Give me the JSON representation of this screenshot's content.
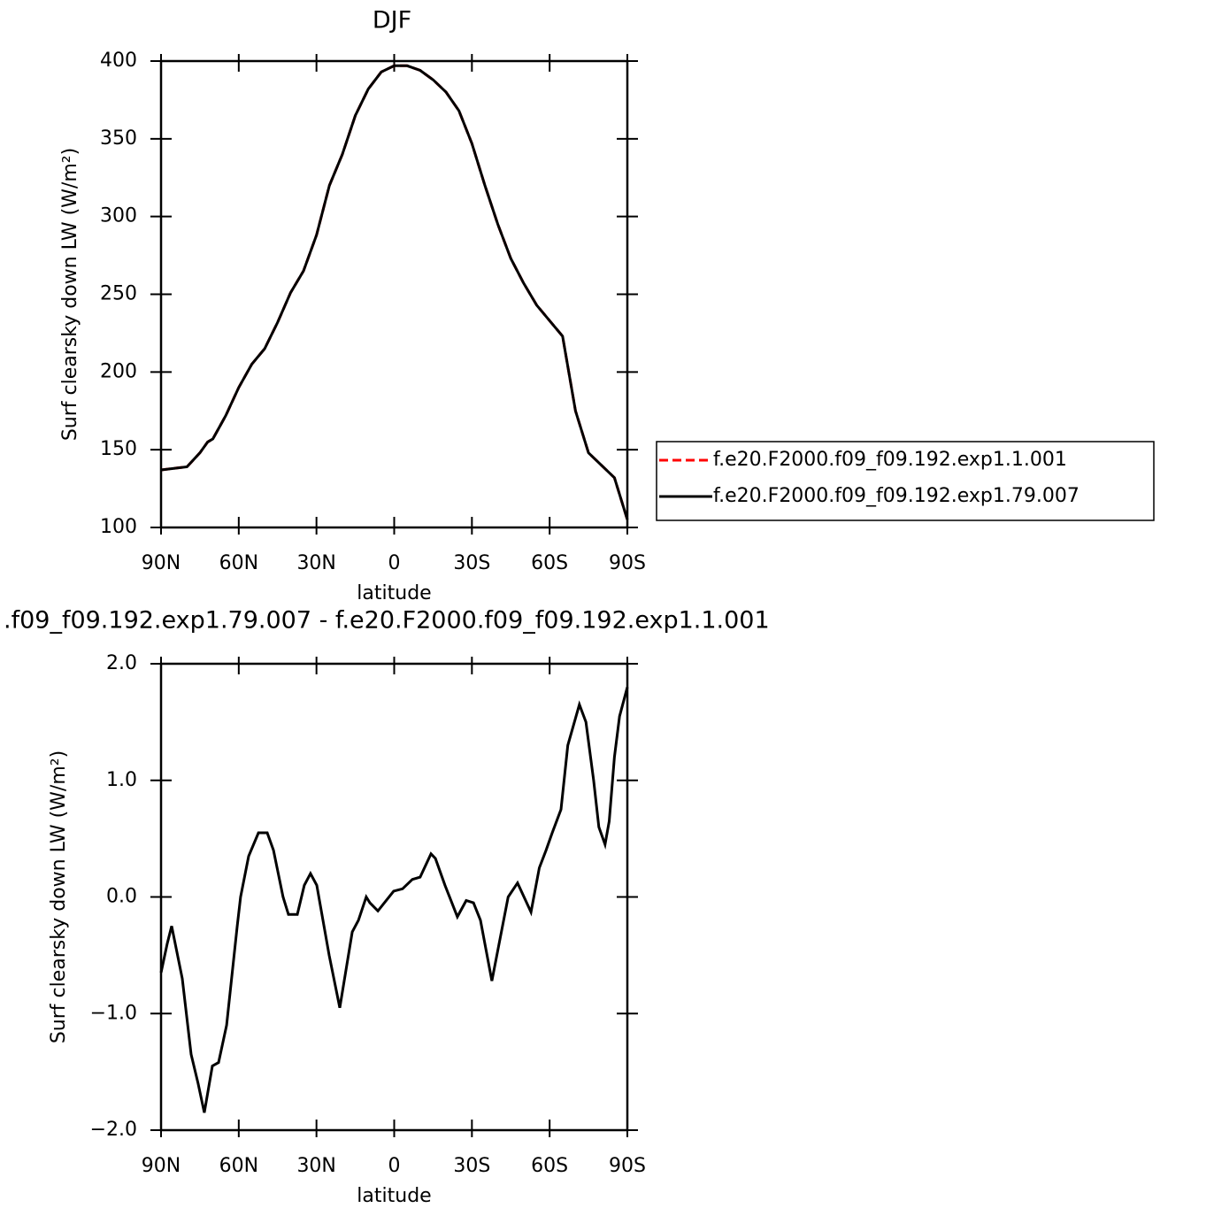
{
  "chart_data": [
    {
      "type": "line",
      "title": "DJF",
      "xlabel": "latitude",
      "ylabel": "Surf  clearsky  down  LW  (W/m²)",
      "x": [
        90,
        85,
        80,
        75,
        72,
        70,
        65,
        60,
        55,
        50,
        45,
        40,
        35,
        30,
        25,
        20,
        15,
        10,
        5,
        0,
        -5,
        -10,
        -15,
        -20,
        -25,
        -30,
        -35,
        -40,
        -45,
        -50,
        -55,
        -60,
        -65,
        -70,
        -75,
        -80,
        -85,
        -90
      ],
      "series": [
        {
          "name": "f.e20.F2000.f09_f09.192.exp1.1.001",
          "color": "#ff0000",
          "style": "dashed",
          "values": [
            137,
            138,
            139,
            148,
            155,
            157,
            172,
            190,
            205,
            215,
            232,
            251,
            265,
            288,
            320,
            340,
            365,
            382,
            393,
            397,
            397,
            394,
            388,
            380,
            368,
            347,
            320,
            295,
            273,
            257,
            243,
            233,
            223,
            175,
            148,
            140,
            132,
            105
          ]
        },
        {
          "name": "f.e20.F2000.f09_f09.192.exp1.79.007",
          "color": "#000000",
          "style": "solid",
          "values": [
            137,
            138,
            139,
            148,
            155,
            157,
            172,
            190,
            205,
            215,
            232,
            251,
            265,
            288,
            320,
            340,
            365,
            382,
            393,
            397,
            397,
            394,
            388,
            380,
            368,
            347,
            320,
            295,
            273,
            257,
            243,
            233,
            223,
            175,
            148,
            140,
            132,
            105
          ]
        }
      ],
      "xlim": [
        90,
        -90
      ],
      "xticks": [
        {
          "value": 90,
          "label": "90N"
        },
        {
          "value": 60,
          "label": "60N"
        },
        {
          "value": 30,
          "label": "30N"
        },
        0,
        {
          "value": -30,
          "label": "30S"
        },
        {
          "value": -60,
          "label": "60S"
        },
        {
          "value": -90,
          "label": "90S"
        }
      ],
      "ylim": [
        100,
        400
      ],
      "yticks": [
        100,
        150,
        200,
        250,
        300,
        350,
        400
      ],
      "legend": "right"
    },
    {
      "type": "line",
      "title": ".f09_f09.192.exp1.79.007 - f.e20.F2000.f09_f09.192.exp1.1.001",
      "xlabel": "latitude",
      "ylabel": "Surf  clearsky  down  LW  (W/m²)",
      "x": [
        90,
        87.6,
        85.9,
        81.8,
        78.4,
        75.7,
        73.3,
        70.2,
        67.8,
        64.7,
        60.6,
        59.3,
        56.2,
        52.4,
        49,
        46.6,
        42.9,
        40.8,
        37.4,
        34.7,
        32.3,
        29.9,
        25.1,
        21,
        16.2,
        13.8,
        10.8,
        9.4,
        6.3,
        0.2,
        -3.2,
        -7,
        -10,
        -14.2,
        -15.9,
        -19.6,
        -24.4,
        -27.8,
        -30.6,
        -33.3,
        -37.7,
        -44,
        -47.6,
        -52.8,
        -56,
        -58.6,
        -61,
        -64.4,
        -67,
        -71.5,
        -74,
        -77,
        -79,
        -81.4,
        -83,
        -85,
        -87,
        -90
      ],
      "values": [
        -0.65,
        -0.4,
        -0.25,
        -0.7,
        -1.35,
        -1.6,
        -1.85,
        -1.45,
        -1.42,
        -1.1,
        -0.25,
        0.0,
        0.35,
        0.55,
        0.55,
        0.4,
        0.0,
        -0.15,
        -0.15,
        0.1,
        0.2,
        0.1,
        -0.5,
        -0.95,
        -0.3,
        -0.2,
        0.0,
        -0.05,
        -0.12,
        0.05,
        0.07,
        0.15,
        0.17,
        0.37,
        0.33,
        0.1,
        -0.17,
        -0.03,
        -0.05,
        -0.2,
        -0.72,
        0.0,
        0.12,
        -0.13,
        0.25,
        0.4,
        0.55,
        0.75,
        1.3,
        1.65,
        1.5,
        1.0,
        0.6,
        0.45,
        0.65,
        1.2,
        1.55,
        1.8
      ],
      "color": "#000000",
      "xlim": [
        90,
        -90
      ],
      "xticks": [
        {
          "value": 90,
          "label": "90N"
        },
        {
          "value": 60,
          "label": "60N"
        },
        {
          "value": 30,
          "label": "30N"
        },
        0,
        {
          "value": -30,
          "label": "30S"
        },
        {
          "value": -60,
          "label": "60S"
        },
        {
          "value": -90,
          "label": "90S"
        }
      ],
      "ylim": [
        -2,
        2
      ],
      "yticks": [
        {
          "value": -2,
          "label": "−2.0"
        },
        {
          "value": -1,
          "label": "−1.0"
        },
        {
          "value": 0,
          "label": "0.0"
        },
        {
          "value": 1,
          "label": "1.0"
        },
        {
          "value": 2,
          "label": "2.0"
        }
      ]
    }
  ]
}
